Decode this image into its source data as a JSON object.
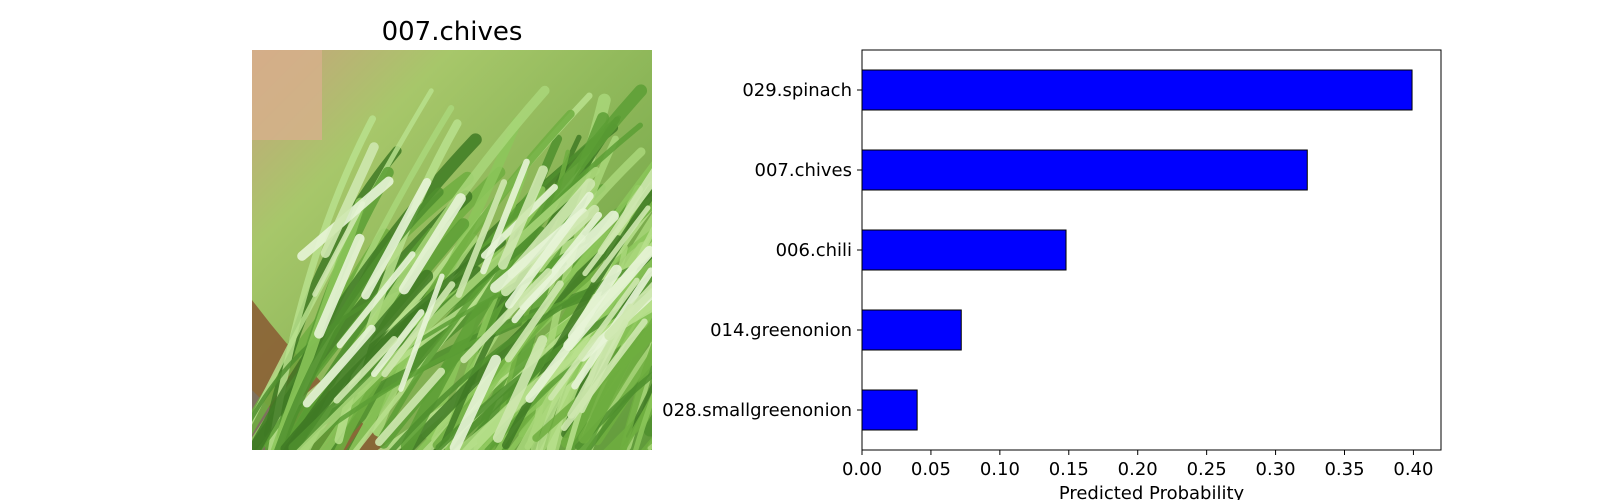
{
  "image_panel": {
    "title": "007.chives"
  },
  "chart_data": {
    "type": "bar",
    "orientation": "horizontal",
    "categories": [
      "029.spinach",
      "007.chives",
      "006.chili",
      "014.greenonion",
      "028.smallgreenonion"
    ],
    "values": [
      0.399,
      0.323,
      0.148,
      0.072,
      0.04
    ],
    "xlabel": "Predicted Probability",
    "ylabel": "",
    "xlim": [
      0,
      0.42
    ],
    "xticks": [
      "0.00",
      "0.05",
      "0.10",
      "0.15",
      "0.20",
      "0.25",
      "0.30",
      "0.35",
      "0.40"
    ],
    "grid": false,
    "bar_color": "#0000ff",
    "edge_color": "#000000"
  }
}
